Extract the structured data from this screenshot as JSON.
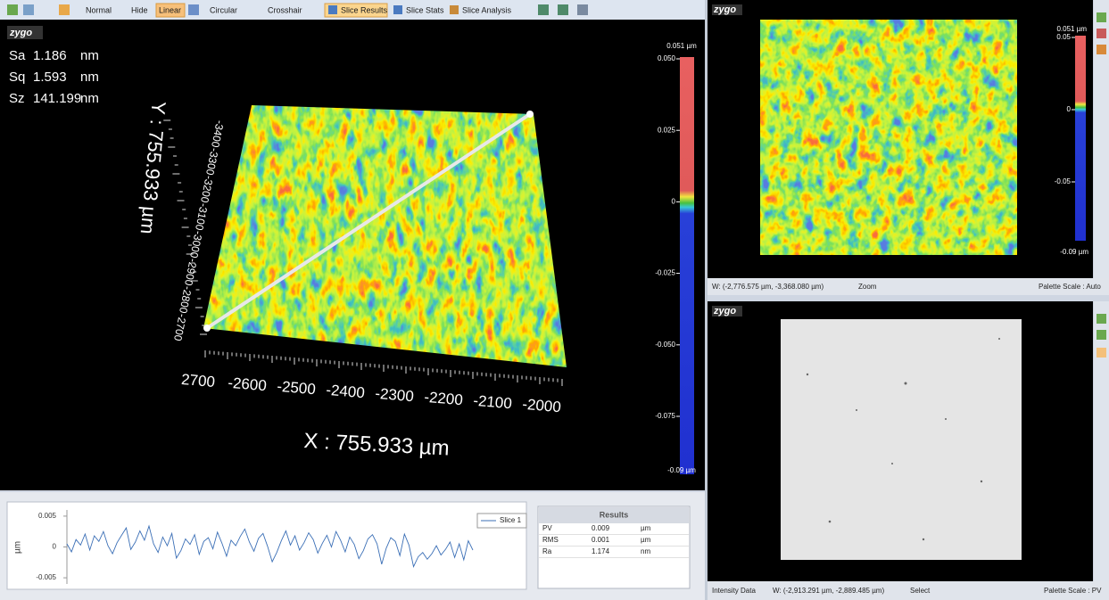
{
  "toolbar": {
    "items": [
      "Normal",
      "Hide",
      "Linear",
      "Circular",
      "Crosshair",
      "Slice Results",
      "Slice Stats",
      "Slice Analysis"
    ]
  },
  "view_3d": {
    "logo": "zygo",
    "stats": [
      {
        "name": "Sa",
        "value": 1.186,
        "unit": "nm"
      },
      {
        "name": "Sq",
        "value": 1.593,
        "unit": "nm"
      },
      {
        "name": "Sz",
        "value": 141.199,
        "unit": "nm"
      }
    ],
    "y_axis_label": "Y : 755.933 µm",
    "x_axis_label": "X : 755.933 µm",
    "x_ticks": [
      "2700",
      "-2600",
      "-2500",
      "-2400",
      "-2300",
      "-2200",
      "-2100",
      "-2000"
    ],
    "y_ticks": [
      "-3400",
      "-3300",
      "-3200",
      "-3100",
      "-3000",
      "-2900",
      "-2800",
      "-2700"
    ],
    "colorbar": {
      "top_label": "0.051 µm",
      "ticks": [
        "0.050",
        "0.025",
        "0",
        "-0.025",
        "-0.050",
        "-0.075"
      ],
      "bottom_label": "-0.09 µm"
    }
  },
  "slice_chart": {
    "type": "line",
    "ylabel": "µm",
    "ylim": [
      -0.006,
      0.006
    ],
    "yticks": [
      0.005,
      0,
      -0.005
    ],
    "series": [
      {
        "name": "Slice 1",
        "color": "#3b6fb6",
        "values": [
          0.0005,
          -0.0008,
          0.0012,
          0.0003,
          0.0021,
          -0.0005,
          0.0018,
          0.0009,
          0.0025,
          0.0002,
          -0.0011,
          0.0007,
          0.0019,
          0.0031,
          -0.0004,
          0.0008,
          0.0026,
          0.0011,
          0.0034,
          0.0005,
          -0.0009,
          0.0016,
          0.0002,
          0.0022,
          -0.0018,
          -0.0006,
          0.0013,
          0.0004,
          0.002,
          -0.0012,
          0.0009,
          0.0015,
          -0.0003,
          0.0024,
          0.0006,
          -0.0015,
          0.0011,
          0.0002,
          0.0017,
          0.0029,
          0.0008,
          -0.0007,
          0.0014,
          0.0022,
          0.0001,
          -0.0024,
          -0.0009,
          0.001,
          0.0026,
          0.0003,
          0.0018,
          -0.0005,
          0.0007,
          0.0023,
          0.0012,
          -0.001,
          0.0006,
          0.0019,
          0,
          0.0025,
          0.0011,
          -0.0008,
          0.0016,
          0.0004,
          -0.0019,
          -0.0006,
          0.0013,
          0.002,
          0.0005,
          -0.0028,
          -0.0002,
          0.0015,
          0.0009,
          -0.0014,
          0.0021,
          0.0003,
          -0.0032,
          -0.0016,
          -0.0009,
          -0.002,
          -0.0011,
          0.0002,
          -0.0013,
          -0.0004,
          0.0008,
          -0.0017,
          0.0005,
          -0.0021,
          0.001,
          -0.0005
        ]
      }
    ]
  },
  "results": {
    "title": "Results",
    "rows": [
      [
        "PV",
        0.009,
        "µm"
      ],
      [
        "RMS",
        0.001,
        "µm"
      ],
      [
        "Ra",
        1.174,
        "nm"
      ]
    ]
  },
  "top_view": {
    "logo": "zygo",
    "colorbar": {
      "top_label": "0.051 µm",
      "ticks": [
        "0.05",
        "0",
        "-0.05"
      ],
      "bottom_label": "-0.09 µm"
    },
    "status": {
      "coords": "W: (-2,776.575 µm, -3,368.080 µm)",
      "mode": "Zoom",
      "palette": "Palette Scale : Auto"
    }
  },
  "bottom_view": {
    "logo": "zygo",
    "status": {
      "data": "Intensity Data",
      "coords": "W: (-2,913.291 µm, -2,889.485 µm)",
      "mode": "Select",
      "palette": "Palette Scale : PV"
    }
  }
}
